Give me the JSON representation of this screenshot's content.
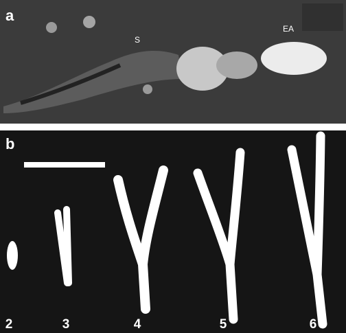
{
  "panels": [
    {
      "label": "a",
      "annotations": [
        "S",
        "EA"
      ]
    },
    {
      "label": "b",
      "stages": [
        "2",
        "3",
        "4",
        "5",
        "6"
      ]
    }
  ]
}
